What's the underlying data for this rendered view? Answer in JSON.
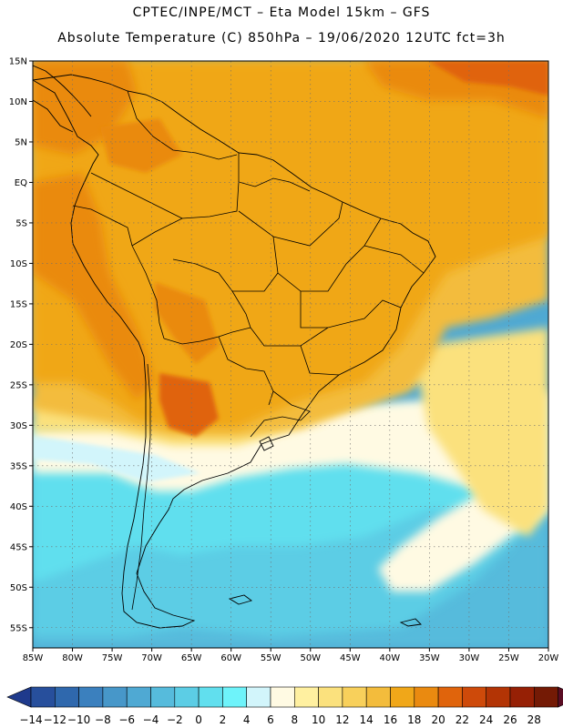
{
  "header": {
    "line1": "CPTEC/INPE/MCT –  Eta Model 15km – GFS",
    "line2": "Absolute Temperature (C) 850hPa – 19/06/2020 12UTC fct=3h"
  },
  "axes": {
    "lat_labels": [
      "15N",
      "10N",
      "5N",
      "EQ",
      "5S",
      "10S",
      "15S",
      "20S",
      "25S",
      "30S",
      "35S",
      "40S",
      "45S",
      "50S",
      "55S"
    ],
    "lon_labels": [
      "85W",
      "80W",
      "75W",
      "70W",
      "65W",
      "60W",
      "55W",
      "50W",
      "45W",
      "40W",
      "35W",
      "30W",
      "25W",
      "20W"
    ],
    "lat_range": [
      15,
      -57.5
    ],
    "lon_range": [
      -85,
      -20
    ]
  },
  "colorbar": {
    "labels": [
      "−14",
      "−12",
      "−10",
      "−8",
      "−6",
      "−4",
      "−2",
      "0",
      "2",
      "4",
      "6",
      "8",
      "10",
      "12",
      "14",
      "16",
      "18",
      "20",
      "22",
      "24",
      "26",
      "28"
    ],
    "colors": [
      "#1f3a8c",
      "#274f9c",
      "#2f68ad",
      "#3b80be",
      "#4797c9",
      "#4fa9d3",
      "#56bbdc",
      "#5ccde5",
      "#61dfee",
      "#6ef3fa",
      "#d2f5fb",
      "#fffae3",
      "#fff0a0",
      "#fbe17d",
      "#f8d05b",
      "#f3bc3c",
      "#f0a719",
      "#ea8a10",
      "#e0640c",
      "#ce4a0a",
      "#b33405",
      "#962005",
      "#741a05",
      "#5a0d24"
    ]
  },
  "map_colors": {
    "deep_blue": "#4fa9d3",
    "mid_blue": "#56bbdc",
    "cyan": "#5ccde5",
    "light_cyan": "#61dfee",
    "pale_cyan": "#d2f5fb",
    "cream": "#fffae3",
    "yellow": "#fbe17d",
    "light_orange": "#f3bc3c",
    "orange": "#f0a719",
    "dark_orange": "#ea8a10",
    "red_orange": "#e0640c",
    "border": "#000000"
  }
}
